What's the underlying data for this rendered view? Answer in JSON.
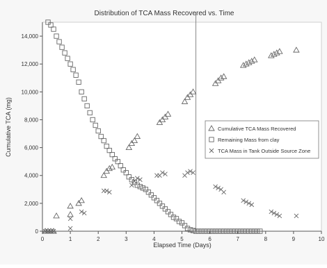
{
  "colors": {
    "background": "#f7f7f7",
    "plot_background": "#ffffff",
    "axis": "#555555",
    "marker": "#666666",
    "reference_line": "#888888"
  },
  "chart_data": {
    "type": "scatter",
    "title": "Distribution of TCA Mass Recovered vs. Time",
    "xlabel": "Elapsed Time (Days)",
    "ylabel": "Cumulative TCA (mg)",
    "xlim": [
      0,
      10
    ],
    "ylim": [
      0,
      15000
    ],
    "x_ticks": [
      0,
      1,
      2,
      3,
      4,
      5,
      6,
      7,
      8,
      9,
      10
    ],
    "y_ticks": [
      0,
      2000,
      4000,
      6000,
      8000,
      10000,
      12000,
      14000
    ],
    "y_tick_labels": [
      "0",
      "2,000",
      "4,000",
      "6,000",
      "8,000",
      "10,000",
      "12,000",
      "14,000"
    ],
    "grid": false,
    "reference_line_x": 5.5,
    "legend_position": "right-middle",
    "series": [
      {
        "name": "Cumulative TCA  Mass Recovered",
        "marker": "triangle",
        "points": [
          [
            0.1,
            0
          ],
          [
            0.2,
            0
          ],
          [
            0.3,
            0
          ],
          [
            0.4,
            0
          ],
          [
            0.5,
            1100
          ],
          [
            1.0,
            1200
          ],
          [
            1.0,
            1800
          ],
          [
            1.3,
            2000
          ],
          [
            1.4,
            2200
          ],
          [
            2.2,
            4000
          ],
          [
            2.3,
            4300
          ],
          [
            2.4,
            4500
          ],
          [
            2.5,
            4600
          ],
          [
            3.1,
            6000
          ],
          [
            3.2,
            6300
          ],
          [
            3.3,
            6500
          ],
          [
            3.4,
            6800
          ],
          [
            4.2,
            7800
          ],
          [
            4.3,
            8000
          ],
          [
            4.4,
            8200
          ],
          [
            4.5,
            8400
          ],
          [
            5.1,
            9300
          ],
          [
            5.2,
            9600
          ],
          [
            5.3,
            9800
          ],
          [
            5.4,
            10000
          ],
          [
            6.2,
            10600
          ],
          [
            6.3,
            10800
          ],
          [
            6.4,
            11000
          ],
          [
            6.5,
            11100
          ],
          [
            7.2,
            11900
          ],
          [
            7.3,
            12000
          ],
          [
            7.4,
            12100
          ],
          [
            7.5,
            12200
          ],
          [
            7.6,
            12300
          ],
          [
            8.2,
            12600
          ],
          [
            8.3,
            12700
          ],
          [
            8.4,
            12800
          ],
          [
            8.5,
            12900
          ],
          [
            9.1,
            13000
          ]
        ]
      },
      {
        "name": "Remaining Mass from clay",
        "marker": "square",
        "points": [
          [
            0.2,
            15000
          ],
          [
            0.3,
            14800
          ],
          [
            0.4,
            14500
          ],
          [
            0.5,
            14000
          ],
          [
            0.6,
            13600
          ],
          [
            0.7,
            13200
          ],
          [
            0.8,
            12800
          ],
          [
            0.9,
            12400
          ],
          [
            1.0,
            12000
          ],
          [
            1.1,
            11600
          ],
          [
            1.2,
            11200
          ],
          [
            1.3,
            10700
          ],
          [
            1.4,
            10000
          ],
          [
            1.5,
            9500
          ],
          [
            1.6,
            9000
          ],
          [
            1.7,
            8500
          ],
          [
            1.8,
            8000
          ],
          [
            1.9,
            7600
          ],
          [
            2.0,
            7200
          ],
          [
            2.1,
            6800
          ],
          [
            2.2,
            6500
          ],
          [
            2.3,
            6100
          ],
          [
            2.4,
            5800
          ],
          [
            2.5,
            5500
          ],
          [
            2.6,
            5200
          ],
          [
            2.7,
            5000
          ],
          [
            2.8,
            4700
          ],
          [
            2.9,
            4400
          ],
          [
            3.0,
            4200
          ],
          [
            3.1,
            3900
          ],
          [
            3.2,
            3700
          ],
          [
            3.3,
            3500
          ],
          [
            3.4,
            3300
          ],
          [
            3.5,
            3200
          ],
          [
            3.6,
            3100
          ],
          [
            3.7,
            3000
          ],
          [
            3.8,
            2800
          ],
          [
            3.9,
            2600
          ],
          [
            4.0,
            2400
          ],
          [
            4.1,
            2200
          ],
          [
            4.2,
            2000
          ],
          [
            4.3,
            1800
          ],
          [
            4.4,
            1600
          ],
          [
            4.5,
            1400
          ],
          [
            4.6,
            1200
          ],
          [
            4.7,
            1000
          ],
          [
            4.8,
            900
          ],
          [
            4.9,
            700
          ],
          [
            5.0,
            600
          ],
          [
            5.1,
            400
          ],
          [
            5.2,
            200
          ],
          [
            5.3,
            100
          ],
          [
            5.4,
            50
          ],
          [
            5.5,
            0
          ],
          [
            5.6,
            0
          ],
          [
            5.7,
            0
          ],
          [
            5.8,
            0
          ],
          [
            5.9,
            0
          ],
          [
            6.0,
            0
          ],
          [
            6.1,
            0
          ],
          [
            6.2,
            0
          ],
          [
            6.3,
            0
          ],
          [
            6.4,
            0
          ],
          [
            6.5,
            0
          ],
          [
            6.6,
            0
          ],
          [
            6.7,
            0
          ],
          [
            6.8,
            0
          ],
          [
            6.9,
            0
          ],
          [
            7.0,
            0
          ],
          [
            7.1,
            0
          ],
          [
            7.2,
            0
          ],
          [
            7.3,
            0
          ],
          [
            7.4,
            0
          ],
          [
            7.5,
            0
          ],
          [
            7.6,
            0
          ],
          [
            7.7,
            0
          ],
          [
            7.8,
            0
          ]
        ]
      },
      {
        "name": "TCA Mass in Tank Outside Source Zone",
        "marker": "x",
        "points": [
          [
            0.1,
            0
          ],
          [
            0.2,
            0
          ],
          [
            0.3,
            0
          ],
          [
            0.4,
            0
          ],
          [
            1.0,
            200
          ],
          [
            1.0,
            900
          ],
          [
            1.4,
            1400
          ],
          [
            1.5,
            1300
          ],
          [
            2.2,
            2900
          ],
          [
            2.3,
            2900
          ],
          [
            2.4,
            2800
          ],
          [
            3.2,
            3300
          ],
          [
            3.3,
            3600
          ],
          [
            3.4,
            3800
          ],
          [
            3.5,
            3700
          ],
          [
            4.1,
            4000
          ],
          [
            4.2,
            4000
          ],
          [
            4.3,
            4200
          ],
          [
            4.4,
            4100
          ],
          [
            5.1,
            4000
          ],
          [
            5.2,
            4200
          ],
          [
            5.3,
            4300
          ],
          [
            5.4,
            4200
          ],
          [
            6.2,
            3200
          ],
          [
            6.3,
            3100
          ],
          [
            6.4,
            3000
          ],
          [
            6.5,
            2800
          ],
          [
            7.2,
            2200
          ],
          [
            7.3,
            2100
          ],
          [
            7.4,
            2000
          ],
          [
            7.5,
            1900
          ],
          [
            8.2,
            1400
          ],
          [
            8.3,
            1300
          ],
          [
            8.4,
            1200
          ],
          [
            8.5,
            1100
          ],
          [
            9.1,
            1100
          ]
        ]
      }
    ]
  }
}
